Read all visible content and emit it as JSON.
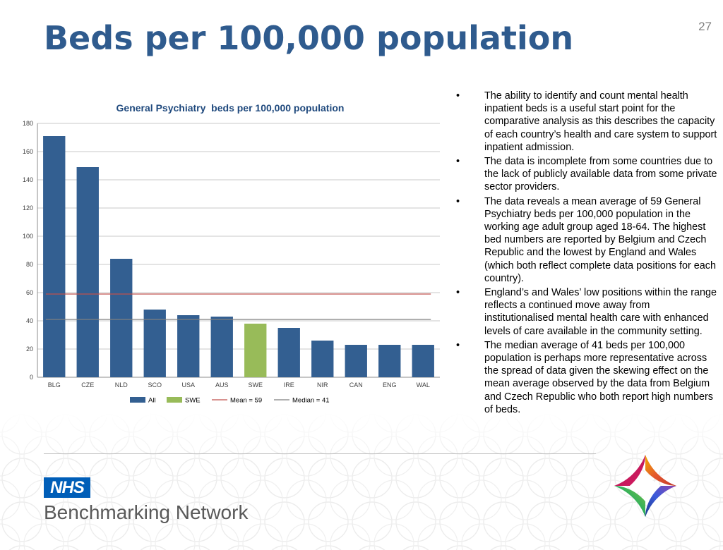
{
  "slide": {
    "title": "Beds per 100,000 population",
    "page_number": "27"
  },
  "colors": {
    "title": "#2f5b8e",
    "all_bar": "#335f91",
    "swe_bar": "#98bb59",
    "mean_line": "#c0504d",
    "median_line": "#7f7f7f"
  },
  "chart_data": {
    "type": "bar",
    "title": "General Psychiatry  beds per 100,000 population",
    "xlabel": "",
    "ylabel": "",
    "ylim": [
      0,
      180
    ],
    "yticks": [
      0,
      20,
      40,
      60,
      80,
      100,
      120,
      140,
      160,
      180
    ],
    "grid": true,
    "legend_position": "bottom",
    "categories": [
      "BLG",
      "CZE",
      "NLD",
      "SCO",
      "USA",
      "AUS",
      "SWE",
      "IRE",
      "NIR",
      "CAN",
      "ENG",
      "WAL"
    ],
    "values": [
      171,
      149,
      84,
      48,
      44,
      43,
      38,
      35,
      26,
      23,
      23,
      23
    ],
    "highlight": {
      "category": "SWE",
      "label": "SWE"
    },
    "series": [
      {
        "name": "All"
      },
      {
        "name": "SWE"
      }
    ],
    "reference_lines": [
      {
        "name": "Mean = 59",
        "value": 59
      },
      {
        "name": "Median = 41",
        "value": 41
      }
    ]
  },
  "bullets": [
    "The ability to identify and count mental health inpatient beds is a useful start point for the comparative analysis as this describes the capacity of each country’s health and care system to support inpatient admission.",
    "The data is incomplete from some countries due to the lack of publicly available data from some private sector providers.",
    "The data reveals a mean average of 59 General Psychiatry beds per 100,000 population in the working age adult group aged 18-64. The highest bed numbers are reported by Belgium and Czech Republic and the lowest by England and Wales (which both reflect complete data positions for each country).",
    "England’s and Wales’ low positions within the range reflects a continued move away from institutionalised mental health care with enhanced levels of care available in the community setting.",
    "The median average of 41 beds per 100,000 population is perhaps more representative across the spread of data given the skewing effect on the mean average observed by the data from Belgium and Czech Republic who both report high numbers of beds."
  ],
  "bullet_marker": "•",
  "footer": {
    "nhs_badge": "NHS",
    "network_name": "Benchmarking Network",
    "logo_icon": "benchmarking-network-logo"
  }
}
